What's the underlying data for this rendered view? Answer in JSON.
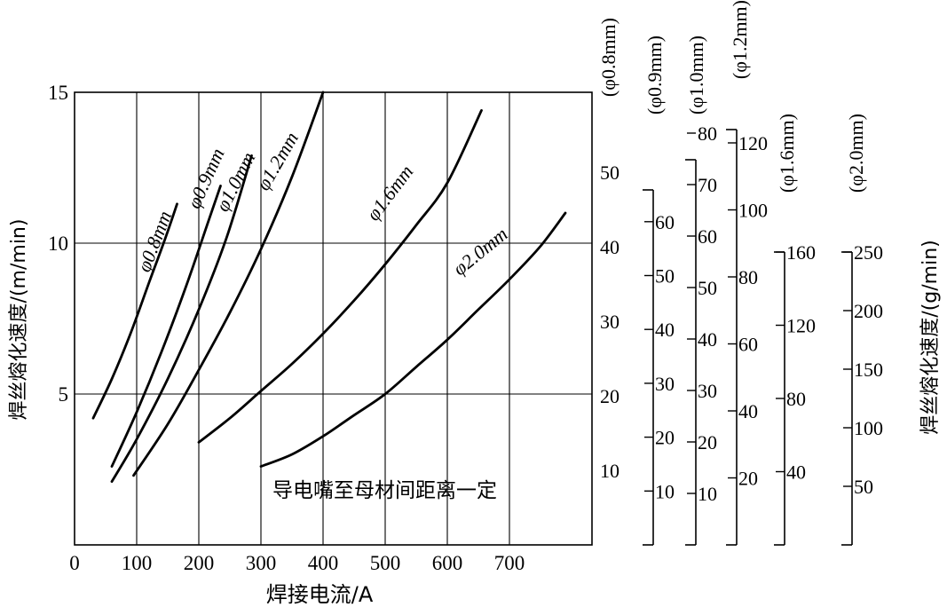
{
  "chart_data": {
    "type": "line",
    "title": "",
    "xlabel": "焊接电流/A",
    "ylabel_left": "焊丝熔化速度/(m/min)",
    "ylabel_right": "焊丝熔化速度/(g/min)",
    "annotation": "导电嘴至母材间距离一定",
    "xlim": [
      0,
      850
    ],
    "ylim": [
      0,
      15
    ],
    "x_ticks": [
      "0",
      "100",
      "200",
      "300",
      "400",
      "500",
      "600",
      "700"
    ],
    "x_tick_values": [
      0,
      100,
      200,
      300,
      400,
      500,
      600,
      700
    ],
    "x_grid": [
      100,
      200,
      300,
      400,
      500,
      600,
      700
    ],
    "y_ticks": [
      "5",
      "10",
      "15"
    ],
    "y_tick_values": [
      5,
      10,
      15
    ],
    "y_grid": [
      5,
      10
    ],
    "grid": true,
    "series": [
      {
        "name": "φ0.8mm",
        "x": [
          30,
          60,
          90,
          120,
          145,
          165
        ],
        "y": [
          4.2,
          5.5,
          7.0,
          8.7,
          10.1,
          11.3
        ]
      },
      {
        "name": "φ0.9mm",
        "x": [
          60,
          100,
          140,
          180,
          215,
          235
        ],
        "y": [
          2.6,
          4.4,
          6.4,
          8.6,
          10.7,
          11.9
        ]
      },
      {
        "name": "φ1.0mm",
        "x": [
          60,
          100,
          150,
          200,
          245,
          285
        ],
        "y": [
          2.1,
          3.5,
          5.5,
          7.8,
          10.2,
          12.9
        ]
      },
      {
        "name": "φ1.2mm",
        "x": [
          95,
          150,
          200,
          250,
          300,
          350,
          400
        ],
        "y": [
          2.3,
          4.0,
          5.8,
          7.7,
          9.8,
          12.2,
          15.0
        ]
      },
      {
        "name": "φ1.6mm",
        "x": [
          200,
          250,
          300,
          350,
          400,
          450,
          500,
          550,
          600,
          655
        ],
        "y": [
          3.4,
          4.2,
          5.1,
          6.0,
          7.0,
          8.1,
          9.3,
          10.6,
          12.0,
          14.4
        ]
      },
      {
        "name": "φ2.0mm",
        "x": [
          300,
          350,
          400,
          450,
          500,
          550,
          600,
          650,
          700,
          750,
          790
        ],
        "y": [
          2.6,
          3.0,
          3.6,
          4.3,
          5.0,
          5.9,
          6.8,
          7.8,
          8.8,
          9.9,
          11.0
        ]
      }
    ],
    "right_axes": [
      {
        "name": "(φ0.8mm)",
        "ticks": [
          "10",
          "20",
          "30",
          "40",
          "50"
        ],
        "values": [
          10,
          20,
          30,
          40,
          50
        ],
        "range": [
          0,
          60
        ]
      },
      {
        "name": "(φ0.9mm)",
        "ticks": [
          "10",
          "20",
          "30",
          "40",
          "50",
          "60"
        ],
        "values": [
          10,
          20,
          30,
          40,
          50,
          60
        ]
      },
      {
        "name": "(φ1.0mm)",
        "ticks": [
          "10",
          "20",
          "30",
          "40",
          "50",
          "60",
          "70",
          "80"
        ],
        "values": [
          10,
          20,
          30,
          40,
          50,
          60,
          70,
          80
        ]
      },
      {
        "name": "(φ1.2mm)",
        "ticks": [
          "20",
          "40",
          "60",
          "80",
          "100",
          "120"
        ],
        "values": [
          20,
          40,
          60,
          80,
          100,
          120
        ]
      },
      {
        "name": "(φ1.6mm)",
        "ticks": [
          "40",
          "80",
          "120",
          "160"
        ],
        "values": [
          40,
          80,
          120,
          160
        ]
      },
      {
        "name": "(φ2.0mm)",
        "ticks": [
          "50",
          "100",
          "150",
          "200",
          "250"
        ],
        "values": [
          50,
          100,
          150,
          200,
          250
        ]
      }
    ]
  }
}
